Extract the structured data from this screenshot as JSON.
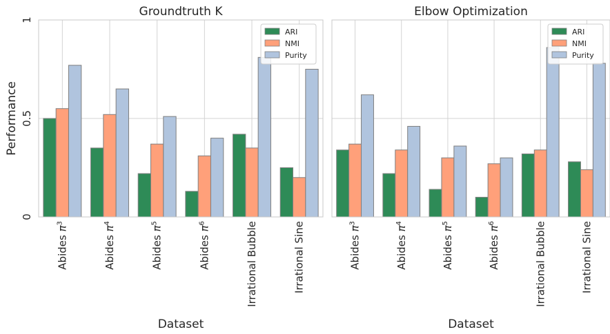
{
  "chart_data": [
    {
      "type": "bar",
      "title": "Groundtruth K",
      "xlabel": "Dataset",
      "ylabel": "Performance",
      "ylim": [
        0,
        1
      ],
      "yticks": [
        0,
        0.5,
        1
      ],
      "ytick_labels": [
        "0",
        "0.5",
        "1"
      ],
      "grid": true,
      "legend_position": "top-right",
      "categories": [
        {
          "base": "Abides ",
          "sup": "3"
        },
        {
          "base": "Abides ",
          "sup": "4"
        },
        {
          "base": "Abides ",
          "sup": "5"
        },
        {
          "base": "Abides ",
          "sup": "6"
        },
        {
          "base": "Irrational Bubble",
          "sup": ""
        },
        {
          "base": "Irrational Sine",
          "sup": ""
        }
      ],
      "series": [
        {
          "name": "ARI",
          "color": "#2e8b57",
          "values": [
            0.5,
            0.35,
            0.22,
            0.13,
            0.42,
            0.25
          ]
        },
        {
          "name": "NMI",
          "color": "#ffa07a",
          "values": [
            0.55,
            0.52,
            0.37,
            0.31,
            0.35,
            0.2
          ]
        },
        {
          "name": "Purity",
          "color": "#b0c4de",
          "values": [
            0.77,
            0.65,
            0.51,
            0.4,
            0.81,
            0.75
          ]
        }
      ]
    },
    {
      "type": "bar",
      "title": "Elbow Optimization",
      "xlabel": "Dataset",
      "ylabel": "",
      "ylim": [
        0,
        1
      ],
      "yticks": [
        0,
        0.5,
        1
      ],
      "ytick_labels": [],
      "grid": true,
      "legend_position": "top-right",
      "categories": [
        {
          "base": "Abides ",
          "sup": "3"
        },
        {
          "base": "Abides ",
          "sup": "4"
        },
        {
          "base": "Abides ",
          "sup": "5"
        },
        {
          "base": "Abides ",
          "sup": "6"
        },
        {
          "base": "Irrational Bubble",
          "sup": ""
        },
        {
          "base": "Irrational Sine",
          "sup": ""
        }
      ],
      "series": [
        {
          "name": "ARI",
          "color": "#2e8b57",
          "values": [
            0.34,
            0.22,
            0.14,
            0.1,
            0.32,
            0.28
          ]
        },
        {
          "name": "NMI",
          "color": "#ffa07a",
          "values": [
            0.37,
            0.34,
            0.3,
            0.27,
            0.34,
            0.24
          ]
        },
        {
          "name": "Purity",
          "color": "#b0c4de",
          "values": [
            0.62,
            0.46,
            0.36,
            0.3,
            0.86,
            0.78
          ]
        }
      ]
    }
  ]
}
